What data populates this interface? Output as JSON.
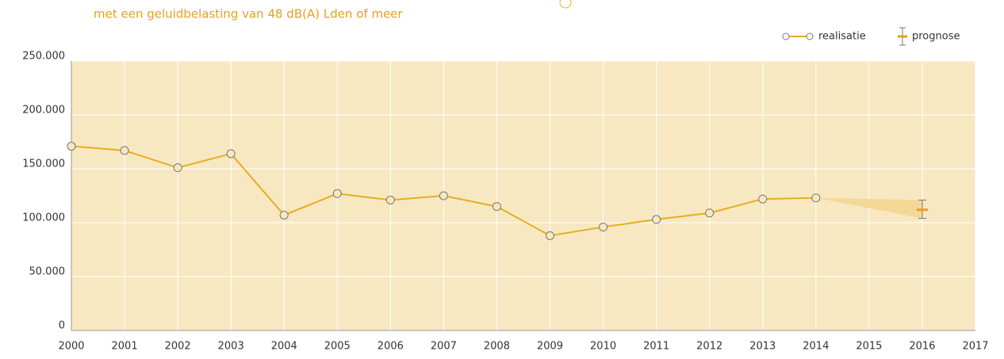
{
  "chart_data": {
    "type": "line",
    "title": "met een geluidbelasting van 48 dB(A) Lden of meer",
    "xlim": [
      2000,
      2017
    ],
    "xticks": [
      2000,
      2001,
      2002,
      2003,
      2004,
      2005,
      2006,
      2007,
      2008,
      2009,
      2010,
      2011,
      2012,
      2013,
      2014,
      2015,
      2016,
      2017
    ],
    "ylim": [
      0,
      250000
    ],
    "yticks": [
      0,
      {
        "value": 50000,
        "label": "50.000"
      },
      {
        "value": 100000,
        "label": "100.000"
      },
      {
        "value": 150000,
        "label": "150.000"
      },
      {
        "value": 200000,
        "label": "200.000"
      },
      {
        "value": 250000,
        "label": "250.000"
      }
    ],
    "grid": true,
    "legend": "top-right",
    "series": [
      {
        "name": "realisatie",
        "color": "#e6ae1f",
        "x": [
          2000,
          2001,
          2002,
          2003,
          2004,
          2005,
          2006,
          2007,
          2008,
          2009,
          2010,
          2011,
          2012,
          2013,
          2014
        ],
        "values": [
          171000,
          167000,
          151000,
          164000,
          107000,
          127000,
          121000,
          125000,
          115000,
          88000,
          96000,
          103000,
          109000,
          122000,
          123000
        ]
      },
      {
        "name": "prognose",
        "type": "errorbar",
        "color": "#e6a01f",
        "x": [
          2016
        ],
        "values": [
          112000
        ],
        "low": [
          104000
        ],
        "high": [
          121000
        ]
      }
    ]
  }
}
